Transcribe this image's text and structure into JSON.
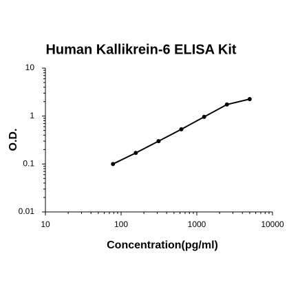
{
  "chart_data": {
    "type": "line",
    "title": "Human Kallikrein-6 ELISA Kit",
    "x_label": "Concentration(pg/ml)",
    "y_label": "O.D.",
    "x_scale": "log",
    "y_scale": "log",
    "x": [
      78.125,
      156.25,
      312.5,
      625,
      1250,
      2500,
      5000
    ],
    "series": [
      {
        "color": "#000000",
        "values": [
          0.1,
          0.17,
          0.3,
          0.53,
          0.96,
          1.74,
          2.26
        ]
      }
    ],
    "xlim": [
      10,
      10000
    ],
    "xticks": [
      10,
      100,
      1000,
      10000
    ],
    "ylim": [
      0.01,
      10
    ],
    "yticks": [
      0.01,
      0.1,
      1,
      10
    ]
  }
}
